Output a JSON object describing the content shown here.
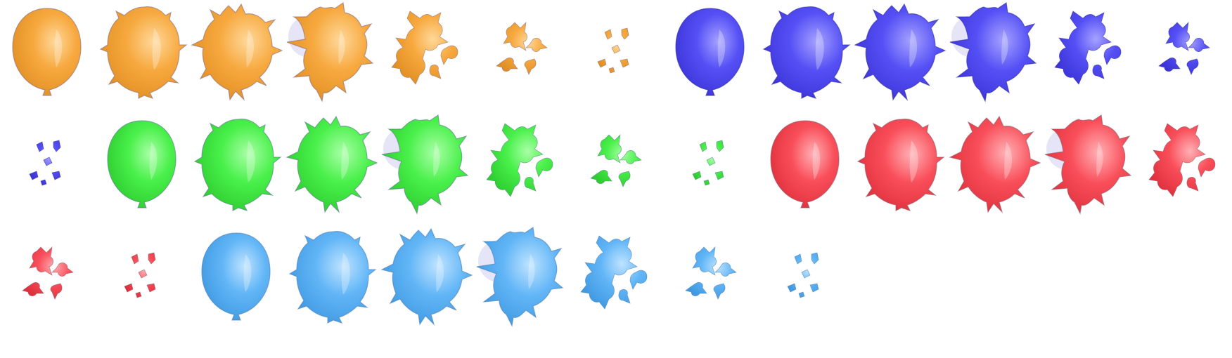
{
  "sprite_sheet": {
    "columns": 13,
    "rows": 3,
    "frames_per_balloon": 7,
    "frame_names": [
      "intact",
      "bulge",
      "burst-start",
      "burst-stretch",
      "tatters",
      "shreds",
      "fragments"
    ],
    "balloons": [
      {
        "color_name": "orange",
        "fill": "#F7A93F",
        "shade": "#E08E22",
        "highlight": "#FFD89A",
        "edge": "#8A6A7A"
      },
      {
        "color_name": "blue",
        "fill": "#5550F5",
        "shade": "#3A33D8",
        "highlight": "#A5A2FF",
        "edge": "#2F2AA0"
      },
      {
        "color_name": "green",
        "fill": "#49F04A",
        "shade": "#2CCB2E",
        "highlight": "#A8FFA6",
        "edge": "#5A7A8A"
      },
      {
        "color_name": "red",
        "fill": "#F94F5A",
        "shade": "#DE2F3B",
        "highlight": "#FFB0B5",
        "edge": "#8A5A6A"
      },
      {
        "color_name": "light-blue",
        "fill": "#62B6F7",
        "shade": "#3E98E0",
        "highlight": "#BFE3FF",
        "edge": "#4C7FB5"
      }
    ]
  }
}
